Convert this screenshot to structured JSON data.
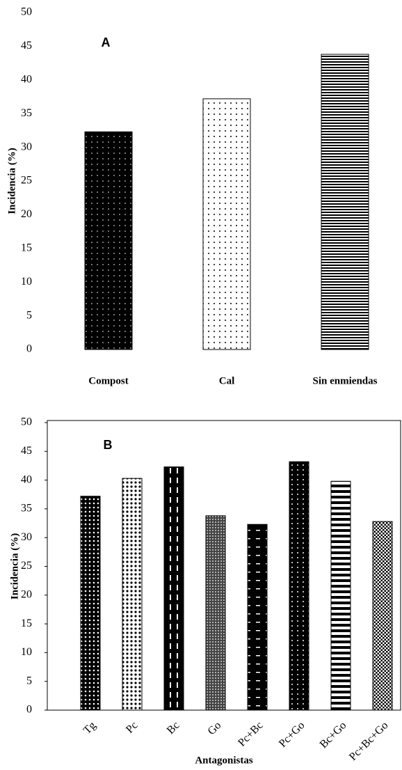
{
  "chart_data": [
    {
      "type": "bar",
      "title": "A",
      "y_label": "Incidencia   (%)",
      "categories": [
        "Compost",
        "Cal",
        "Sin enmiendas"
      ],
      "values": [
        32.3,
        37.2,
        43.8
      ],
      "color": "#000000",
      "ylim": [
        0,
        50
      ],
      "yticks": [
        0,
        5,
        10,
        15,
        20,
        25,
        30,
        35,
        40,
        45,
        50
      ]
    },
    {
      "type": "bar",
      "title": "B",
      "y_label": "Incidencia  (%)",
      "x_label": "Antagonistas",
      "categories": [
        "Tg",
        "Pc",
        "Bc",
        "Go",
        "Pc+Bc",
        "Pc+Go",
        "Bc+Go",
        "Pc+Bc+Go"
      ],
      "values": [
        37.2,
        40.3,
        42.3,
        33.8,
        32.3,
        43.2,
        39.8,
        32.8
      ],
      "color": "#000000",
      "ylim": [
        0,
        50
      ],
      "yticks": [
        0,
        5,
        10,
        15,
        20,
        25,
        30,
        35,
        40,
        45,
        50
      ]
    }
  ]
}
